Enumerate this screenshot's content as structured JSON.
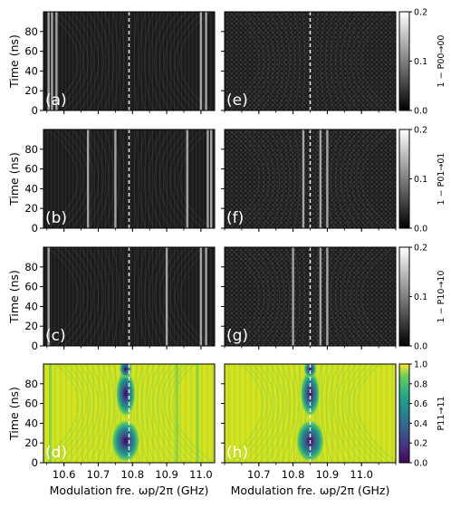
{
  "chart_data": {
    "type": "heatmap",
    "figure": {
      "xlabel": "Modulation fre. ωp/2π (GHz)",
      "ylabel": "Time (ns)"
    },
    "rows": [
      {
        "colorbar": {
          "label": "1 − P00→00",
          "ticks": [
            "0.0",
            "0.1",
            "0.2"
          ],
          "range": [
            0.0,
            0.2
          ],
          "colormap": "gray"
        }
      },
      {
        "colorbar": {
          "label": "1 − P01→01",
          "ticks": [
            "0.0",
            "0.1",
            "0.2"
          ],
          "range": [
            0.0,
            0.2
          ],
          "colormap": "gray"
        }
      },
      {
        "colorbar": {
          "label": "1 − P10→10",
          "ticks": [
            "0.0",
            "0.1",
            "0.2"
          ],
          "range": [
            0.0,
            0.2
          ],
          "colormap": "gray"
        }
      },
      {
        "colorbar": {
          "label": "P11→11",
          "ticks": [
            "0.0",
            "0.2",
            "0.4",
            "0.6",
            "0.8",
            "1.0"
          ],
          "range": [
            0.0,
            1.0
          ],
          "colormap": "viridis"
        }
      }
    ],
    "columns": [
      {
        "xlim": [
          10.54,
          11.04
        ],
        "xticks": [
          "10.6",
          "10.7",
          "10.8",
          "10.9",
          "11.0"
        ],
        "xtick_values": [
          10.6,
          10.7,
          10.8,
          10.9,
          11.0
        ],
        "dashed_line_x": 10.79
      },
      {
        "xlim": [
          10.6,
          11.1
        ],
        "xticks": [
          "10.7",
          "10.8",
          "10.9",
          "11.0"
        ],
        "xtick_values": [
          10.7,
          10.8,
          10.9,
          11.0
        ],
        "dashed_line_x": 10.85
      }
    ],
    "panels": [
      {
        "label": "(a)",
        "row": 0,
        "col": 0,
        "streaks": [
          10.555,
          10.565,
          10.578,
          11.0,
          11.015
        ]
      },
      {
        "label": "(e)",
        "row": 0,
        "col": 1,
        "streaks": []
      },
      {
        "label": "(b)",
        "row": 1,
        "col": 0,
        "streaks": [
          10.67,
          10.75,
          10.96,
          11.02,
          11.03
        ]
      },
      {
        "label": "(f)",
        "row": 1,
        "col": 1,
        "streaks": [
          10.83,
          10.88,
          10.9
        ]
      },
      {
        "label": "(c)",
        "row": 2,
        "col": 0,
        "streaks": [
          10.555,
          10.9,
          11.0,
          11.015
        ]
      },
      {
        "label": "(g)",
        "row": 2,
        "col": 1,
        "streaks": [
          10.8,
          10.88,
          10.9
        ]
      },
      {
        "label": "(d)",
        "row": 3,
        "col": 0,
        "center": 10.78
      },
      {
        "label": "(h)",
        "row": 3,
        "col": 1,
        "center": 10.85
      }
    ],
    "ylim": [
      0,
      100
    ],
    "yticks": [
      "0",
      "20",
      "40",
      "60",
      "80"
    ],
    "ytick_values": [
      0,
      20,
      40,
      60,
      80
    ]
  }
}
